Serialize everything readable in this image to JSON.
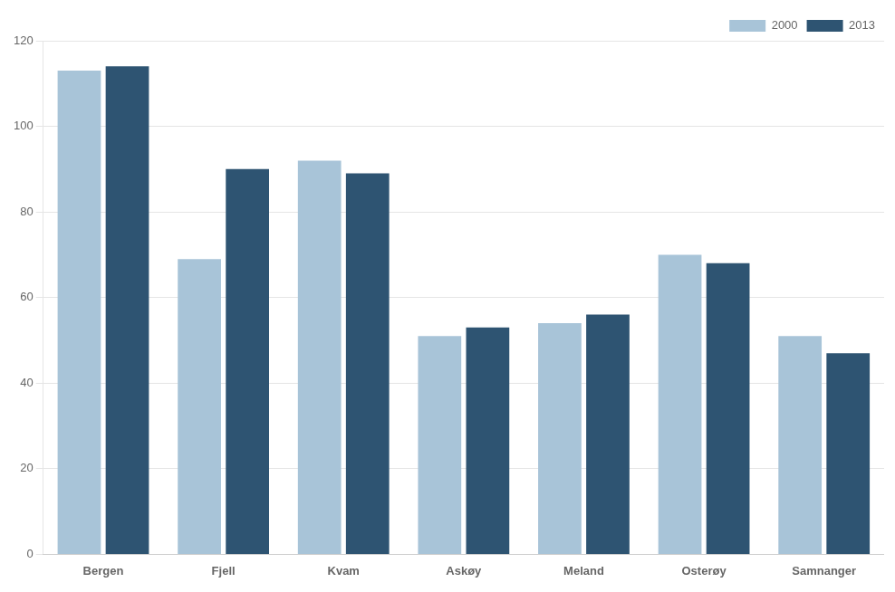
{
  "chart_data": {
    "type": "bar",
    "categories": [
      "Bergen",
      "Fjell",
      "Kvam",
      "Askøy",
      "Meland",
      "Osterøy",
      "Samnanger"
    ],
    "series": [
      {
        "name": "2000",
        "color": "#a8c4d8",
        "values": [
          113,
          69,
          92,
          51,
          54,
          70,
          51
        ]
      },
      {
        "name": "2013",
        "color": "#2e5472",
        "values": [
          114,
          90,
          89,
          53,
          56,
          68,
          47
        ]
      }
    ],
    "ylim": [
      0,
      120
    ],
    "yticks": [
      0,
      20,
      40,
      60,
      80,
      100,
      120
    ],
    "grid": true,
    "legend": "upper right"
  }
}
